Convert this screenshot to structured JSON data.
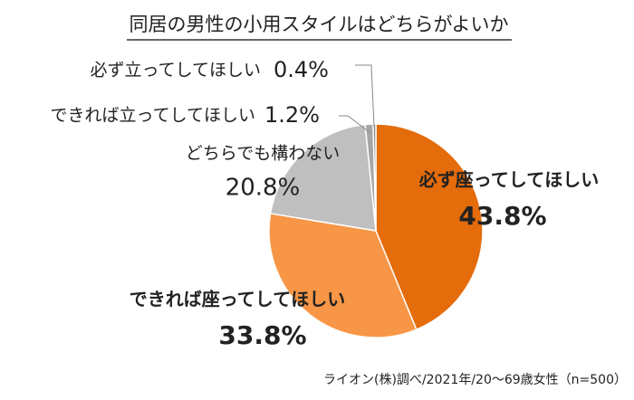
{
  "chart_data": {
    "type": "pie",
    "title": "同居の男性の小用スタイルはどちらがよいか",
    "categories": [
      "必ず座ってしてほしい",
      "できれば座ってしてほしい",
      "どちらでも構わない",
      "できれば立ってしてほしい",
      "必ず立ってしてほしい"
    ],
    "values": [
      43.8,
      33.8,
      20.8,
      1.2,
      0.4
    ],
    "value_labels": [
      "43.8%",
      "33.8%",
      "20.8%",
      "1.2%",
      "0.4%"
    ],
    "colors": [
      "#e46c0a",
      "#f79646",
      "#bfbfbf",
      "#a6a6a6",
      "#7f7f7f"
    ],
    "source": "ライオン(株)調べ/2021年/20～69歳女性（n=500）"
  }
}
